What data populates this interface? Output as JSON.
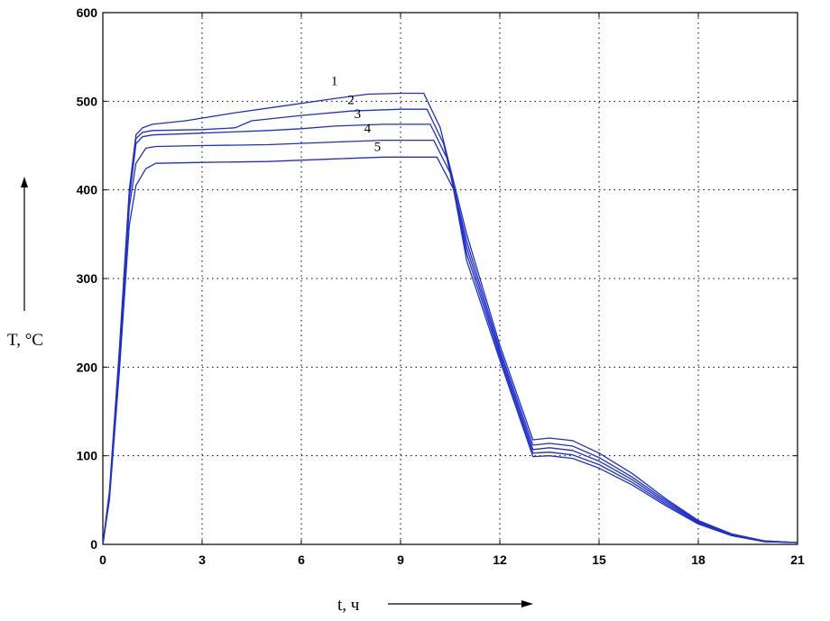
{
  "chart_data": {
    "type": "line",
    "title": "",
    "xlabel": "t, ч",
    "ylabel": "T, °C",
    "xlim": [
      0,
      21
    ],
    "ylim": [
      0,
      600
    ],
    "xticks": [
      0,
      3,
      6,
      9,
      12,
      15,
      18,
      21
    ],
    "yticks": [
      0,
      100,
      200,
      300,
      400,
      500,
      600
    ],
    "x_tick_labels": [
      "0",
      "3",
      "6",
      "9",
      "12",
      "15",
      "18",
      "21"
    ],
    "y_tick_labels": [
      "0",
      "100",
      "200",
      "300",
      "400",
      "500",
      "600"
    ],
    "grid": true,
    "line_color": "#1f2fd0",
    "series": [
      {
        "name": "1",
        "points": [
          [
            0,
            0
          ],
          [
            0.2,
            60
          ],
          [
            0.5,
            220
          ],
          [
            0.8,
            400
          ],
          [
            1.0,
            462
          ],
          [
            1.2,
            470
          ],
          [
            1.5,
            474
          ],
          [
            2.5,
            478
          ],
          [
            4.0,
            487
          ],
          [
            5.5,
            495
          ],
          [
            7.0,
            503
          ],
          [
            8.0,
            508
          ],
          [
            9.0,
            509
          ],
          [
            9.7,
            509
          ],
          [
            10.2,
            470
          ],
          [
            11.0,
            350
          ],
          [
            12.0,
            225
          ],
          [
            13.0,
            118
          ],
          [
            13.5,
            120
          ],
          [
            14.2,
            117
          ],
          [
            15.0,
            103
          ],
          [
            16.0,
            80
          ],
          [
            17.0,
            52
          ],
          [
            18.0,
            27
          ],
          [
            19.0,
            12
          ],
          [
            20.0,
            4
          ],
          [
            21.0,
            2
          ]
        ]
      },
      {
        "name": "2",
        "points": [
          [
            0,
            0
          ],
          [
            0.2,
            58
          ],
          [
            0.5,
            215
          ],
          [
            0.8,
            395
          ],
          [
            1.0,
            458
          ],
          [
            1.2,
            465
          ],
          [
            1.5,
            467
          ],
          [
            3.0,
            468
          ],
          [
            4.0,
            470
          ],
          [
            4.5,
            478
          ],
          [
            6.0,
            484
          ],
          [
            7.5,
            489
          ],
          [
            9.0,
            491
          ],
          [
            9.8,
            491
          ],
          [
            10.3,
            452
          ],
          [
            11.0,
            342
          ],
          [
            12.0,
            220
          ],
          [
            13.0,
            112
          ],
          [
            13.5,
            114
          ],
          [
            14.2,
            111
          ],
          [
            15.0,
            98
          ],
          [
            16.0,
            76
          ],
          [
            17.0,
            50
          ],
          [
            18.0,
            26
          ],
          [
            19.0,
            11
          ],
          [
            20.0,
            4
          ],
          [
            21.0,
            2
          ]
        ]
      },
      {
        "name": "3",
        "points": [
          [
            0,
            0
          ],
          [
            0.2,
            56
          ],
          [
            0.5,
            210
          ],
          [
            0.8,
            390
          ],
          [
            1.0,
            452
          ],
          [
            1.2,
            460
          ],
          [
            1.5,
            462
          ],
          [
            3.0,
            464
          ],
          [
            5.0,
            467
          ],
          [
            6.0,
            469
          ],
          [
            7.0,
            472
          ],
          [
            8.5,
            474
          ],
          [
            9.9,
            474
          ],
          [
            10.4,
            436
          ],
          [
            11.0,
            335
          ],
          [
            12.0,
            216
          ],
          [
            13.0,
            107
          ],
          [
            13.5,
            109
          ],
          [
            14.2,
            106
          ],
          [
            15.0,
            94
          ],
          [
            16.0,
            73
          ],
          [
            17.0,
            48
          ],
          [
            18.0,
            25
          ],
          [
            19.0,
            11
          ],
          [
            20.0,
            3
          ],
          [
            21.0,
            2
          ]
        ]
      },
      {
        "name": "4",
        "points": [
          [
            0,
            0
          ],
          [
            0.2,
            54
          ],
          [
            0.5,
            205
          ],
          [
            0.8,
            380
          ],
          [
            1.0,
            430
          ],
          [
            1.3,
            447
          ],
          [
            1.6,
            449
          ],
          [
            3.0,
            450
          ],
          [
            5.0,
            451
          ],
          [
            7.0,
            454
          ],
          [
            8.5,
            456
          ],
          [
            10.0,
            456
          ],
          [
            10.5,
            419
          ],
          [
            11.0,
            328
          ],
          [
            12.0,
            212
          ],
          [
            13.0,
            103
          ],
          [
            13.5,
            104
          ],
          [
            14.2,
            101
          ],
          [
            15.0,
            90
          ],
          [
            16.0,
            70
          ],
          [
            17.0,
            46
          ],
          [
            18.0,
            24
          ],
          [
            19.0,
            10
          ],
          [
            20.0,
            3
          ],
          [
            21.0,
            2
          ]
        ]
      },
      {
        "name": "5",
        "points": [
          [
            0,
            0
          ],
          [
            0.2,
            50
          ],
          [
            0.5,
            195
          ],
          [
            0.8,
            360
          ],
          [
            1.0,
            405
          ],
          [
            1.3,
            424
          ],
          [
            1.6,
            430
          ],
          [
            3.0,
            431
          ],
          [
            5.0,
            432
          ],
          [
            7.0,
            435
          ],
          [
            8.5,
            437
          ],
          [
            10.1,
            437
          ],
          [
            10.6,
            401
          ],
          [
            11.0,
            320
          ],
          [
            12.0,
            208
          ],
          [
            13.0,
            99
          ],
          [
            13.5,
            100
          ],
          [
            14.2,
            97
          ],
          [
            15.0,
            86
          ],
          [
            16.0,
            67
          ],
          [
            17.0,
            44
          ],
          [
            18.0,
            23
          ],
          [
            19.0,
            10
          ],
          [
            20.0,
            3
          ],
          [
            21.0,
            2
          ]
        ]
      }
    ],
    "series_labels": [
      {
        "text": "1",
        "x": 7.0,
        "y": 518
      },
      {
        "text": "2",
        "x": 7.5,
        "y": 497
      },
      {
        "text": "3",
        "x": 7.7,
        "y": 481
      },
      {
        "text": "4",
        "x": 8.0,
        "y": 465
      },
      {
        "text": "5",
        "x": 8.3,
        "y": 444
      }
    ]
  }
}
